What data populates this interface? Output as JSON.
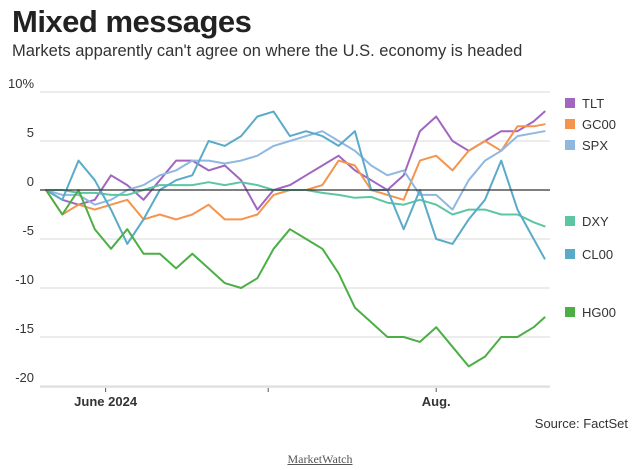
{
  "title": "Mixed messages",
  "subtitle": "Markets apparently can't agree on where the U.S. economy is headed",
  "source": "Source: FactSet",
  "footer": "MarketWatch",
  "chart_data": {
    "type": "line",
    "title": "Mixed messages",
    "xlabel": "",
    "ylabel": "",
    "ylim": [
      -20,
      10
    ],
    "xlim": [
      "2024-05-21",
      "2024-08-22"
    ],
    "y_ticks": [
      10,
      5,
      0,
      -5,
      -10,
      -15,
      -20
    ],
    "y_tick_labels": [
      "10%",
      "5",
      "0",
      "-5",
      "-10",
      "-15",
      "-20"
    ],
    "x_ticks": [
      {
        "date": "2024-06-01",
        "label": "June 2024"
      },
      {
        "date": "2024-07-01",
        "label": ""
      },
      {
        "date": "2024-08-01",
        "label": "Aug."
      }
    ],
    "grid": true,
    "legend_placement": "right",
    "dates": [
      "2024-05-21",
      "2024-05-24",
      "2024-05-27",
      "2024-05-30",
      "2024-06-02",
      "2024-06-05",
      "2024-06-08",
      "2024-06-11",
      "2024-06-14",
      "2024-06-17",
      "2024-06-20",
      "2024-06-23",
      "2024-06-26",
      "2024-06-29",
      "2024-07-02",
      "2024-07-05",
      "2024-07-08",
      "2024-07-11",
      "2024-07-14",
      "2024-07-17",
      "2024-07-20",
      "2024-07-23",
      "2024-07-26",
      "2024-07-29",
      "2024-08-01",
      "2024-08-04",
      "2024-08-07",
      "2024-08-10",
      "2024-08-13",
      "2024-08-16",
      "2024-08-19",
      "2024-08-21"
    ],
    "series": [
      {
        "name": "TLT",
        "color": "#a066c0",
        "values": [
          0,
          -1,
          -1.5,
          -1,
          1.5,
          0.5,
          -1,
          1,
          3,
          3,
          2,
          2.5,
          1,
          -2,
          0,
          0.5,
          1.5,
          2.5,
          3.5,
          2,
          1,
          0,
          1.5,
          6,
          7.5,
          5,
          4,
          5,
          6,
          6,
          7,
          8
        ]
      },
      {
        "name": "GC00",
        "color": "#f5944a",
        "values": [
          0,
          -2.5,
          -1.5,
          -2,
          -1.5,
          -1,
          -3,
          -2.5,
          -3,
          -2.5,
          -1.5,
          -3,
          -3,
          -2.5,
          -0.5,
          0,
          0,
          0.5,
          3,
          2.5,
          0,
          -0.5,
          -1,
          3,
          3.5,
          2,
          4,
          5,
          4,
          6.5,
          6.5,
          6.7
        ]
      },
      {
        "name": "SPX",
        "color": "#8fb8e0",
        "values": [
          0,
          -0.5,
          -0.5,
          -1.5,
          -1,
          0,
          0.5,
          1.5,
          2,
          3,
          3,
          2.7,
          3,
          3.5,
          4.5,
          5,
          5.5,
          6,
          5,
          4,
          2.5,
          1.5,
          2,
          -0.5,
          -0.5,
          -2,
          1,
          3,
          4,
          5.5,
          5.8,
          6
        ]
      },
      {
        "name": "DXY",
        "color": "#5cc6a3",
        "values": [
          0,
          0,
          -0.3,
          -0.3,
          -0.5,
          -0.5,
          0,
          0.5,
          0.5,
          0.5,
          0.8,
          0.5,
          0.8,
          0.5,
          0,
          0,
          0,
          -0.3,
          -0.5,
          -0.8,
          -0.7,
          -1.3,
          -1.5,
          -1,
          -1.5,
          -2.5,
          -2,
          -2,
          -2.5,
          -2.5,
          -3.3,
          -3.7
        ]
      },
      {
        "name": "CL00",
        "color": "#5aabc8",
        "values": [
          0,
          -1,
          3,
          1,
          -2,
          -5.5,
          -3,
          0,
          1,
          1.5,
          5,
          4.5,
          5.5,
          7.5,
          8,
          5.5,
          6,
          5.5,
          4.5,
          6,
          0,
          0,
          -4,
          0,
          -5,
          -5.5,
          -3,
          -1,
          3,
          -2,
          -5,
          -7
        ]
      },
      {
        "name": "HG00",
        "color": "#4caf45",
        "values": [
          0,
          -2.5,
          0,
          -4,
          -6,
          -4,
          -6.5,
          -6.5,
          -8,
          -6.5,
          -8,
          -9.5,
          -10,
          -9,
          -6,
          -4,
          -5,
          -6,
          -8.5,
          -12,
          -13.5,
          -15,
          -15,
          -15.5,
          -14,
          -16,
          -18,
          -17,
          -15,
          -15,
          -14,
          -13
        ]
      }
    ]
  }
}
